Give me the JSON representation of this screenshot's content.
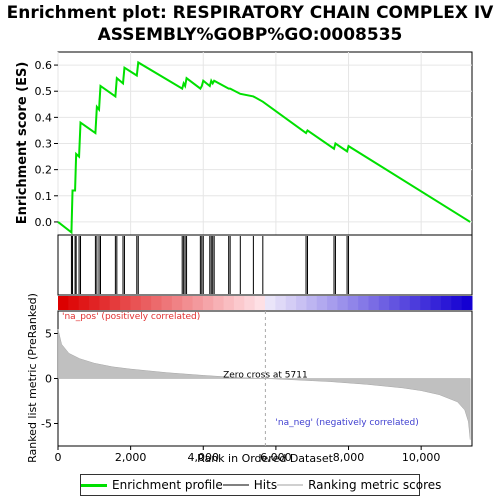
{
  "title_line1": "Enrichment plot: RESPIRATORY CHAIN COMPLEX IV",
  "title_line2": "ASSEMBLY%GOBP%GO:0008535",
  "chart_data": {
    "type": "line",
    "x_label": "Rank in Ordered Dataset",
    "x_max": 11400,
    "x_ticks": [
      0,
      2000,
      4000,
      6000,
      8000,
      10000
    ],
    "x_tick_labels": [
      "0",
      "2,000",
      "4,000",
      "6,000",
      "8,000",
      "10,000"
    ],
    "es_plot": {
      "ylabel": "Enrichment score (ES)",
      "ylim": [
        -0.05,
        0.65
      ],
      "y_ticks": [
        0.0,
        0.1,
        0.2,
        0.3,
        0.4,
        0.5,
        0.6
      ],
      "y_tick_labels": [
        "0.0",
        "0.1",
        "0.2",
        "0.3",
        "0.4",
        "0.5",
        "0.6"
      ],
      "series_name": "Enrichment profile",
      "color": "#00e000",
      "points": [
        [
          0,
          0.0
        ],
        [
          370,
          -0.04
        ],
        [
          400,
          0.12
        ],
        [
          470,
          0.12
        ],
        [
          500,
          0.26
        ],
        [
          580,
          0.25
        ],
        [
          620,
          0.38
        ],
        [
          1030,
          0.34
        ],
        [
          1070,
          0.44
        ],
        [
          1130,
          0.43
        ],
        [
          1170,
          0.52
        ],
        [
          1580,
          0.48
        ],
        [
          1620,
          0.55
        ],
        [
          1790,
          0.53
        ],
        [
          1830,
          0.59
        ],
        [
          2170,
          0.56
        ],
        [
          2210,
          0.61
        ],
        [
          3420,
          0.51
        ],
        [
          3460,
          0.53
        ],
        [
          3500,
          0.52
        ],
        [
          3540,
          0.55
        ],
        [
          3920,
          0.51
        ],
        [
          3960,
          0.52
        ],
        [
          4000,
          0.54
        ],
        [
          4180,
          0.52
        ],
        [
          4220,
          0.54
        ],
        [
          4260,
          0.53
        ],
        [
          4300,
          0.54
        ],
        [
          4700,
          0.51
        ],
        [
          4740,
          0.51
        ],
        [
          5020,
          0.49
        ],
        [
          5380,
          0.48
        ],
        [
          5640,
          0.46
        ],
        [
          6830,
          0.34
        ],
        [
          6870,
          0.35
        ],
        [
          7600,
          0.28
        ],
        [
          7640,
          0.3
        ],
        [
          7960,
          0.27
        ],
        [
          8000,
          0.29
        ],
        [
          11350,
          0.0
        ]
      ]
    },
    "hits": [
      370,
      400,
      470,
      500,
      580,
      620,
      1030,
      1070,
      1130,
      1170,
      1580,
      1620,
      1790,
      1830,
      2170,
      2210,
      3420,
      3460,
      3500,
      3540,
      3920,
      3960,
      4000,
      4180,
      4220,
      4260,
      4300,
      4700,
      4740,
      5020,
      5380,
      5640,
      6830,
      6870,
      7600,
      7640,
      7960,
      8000
    ],
    "ranked_metric": {
      "ylabel": "Ranked list metric (PreRanked)",
      "ylim": [
        -7.5,
        7.5
      ],
      "y_ticks": [
        -5,
        0,
        5
      ],
      "y_tick_labels": [
        "-5",
        "0",
        "5"
      ],
      "points": [
        [
          0,
          5.5
        ],
        [
          100,
          3.8
        ],
        [
          300,
          2.8
        ],
        [
          600,
          2.2
        ],
        [
          1000,
          1.7
        ],
        [
          1500,
          1.3
        ],
        [
          2000,
          1.05
        ],
        [
          2500,
          0.85
        ],
        [
          3000,
          0.65
        ],
        [
          3500,
          0.5
        ],
        [
          4000,
          0.35
        ],
        [
          4500,
          0.22
        ],
        [
          5000,
          0.1
        ],
        [
          5711,
          0.0
        ],
        [
          6500,
          -0.15
        ],
        [
          7000,
          -0.25
        ],
        [
          7500,
          -0.35
        ],
        [
          8000,
          -0.5
        ],
        [
          8500,
          -0.65
        ],
        [
          9000,
          -0.85
        ],
        [
          9500,
          -1.05
        ],
        [
          10000,
          -1.35
        ],
        [
          10500,
          -1.8
        ],
        [
          11000,
          -2.6
        ],
        [
          11200,
          -3.5
        ],
        [
          11300,
          -4.8
        ],
        [
          11350,
          -6.8
        ]
      ],
      "zero_cross_label": "Zero cross at 5711",
      "zero_cross": 5711,
      "pos_label": "'na_pos' (positively correlated)",
      "neg_label": "'na_neg' (negatively correlated)"
    },
    "legend": [
      {
        "label": "Enrichment profile",
        "color": "#00e000"
      },
      {
        "label": "Hits",
        "color": "#808080"
      },
      {
        "label": "Ranking metric scores",
        "color": "#d0d0d0"
      }
    ]
  }
}
